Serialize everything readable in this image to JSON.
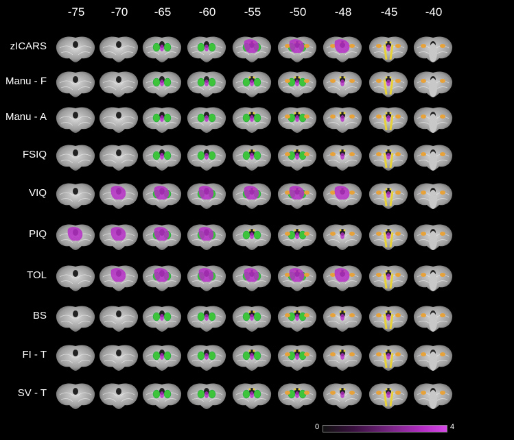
{
  "columns": [
    "-75",
    "-70",
    "-65",
    "-60",
    "-55",
    "-50",
    "-48",
    "-45",
    "-40"
  ],
  "rows": [
    "zICARS",
    "Manu - F",
    "Manu - A",
    "FSIQ",
    "VIQ",
    "PIQ",
    "TOL",
    "BS",
    "FI - T",
    "SV - T"
  ],
  "colorbar": {
    "min_label": "0",
    "max_label": "4"
  },
  "colors": {
    "background": "#000000",
    "tissue": "#9c9c9c",
    "nucleus_green": "#3ec43a",
    "nucleus_yellow": "#e8d23a",
    "nucleus_orange": "#e8a23a",
    "activation_magenta": "#b52dc6"
  }
}
